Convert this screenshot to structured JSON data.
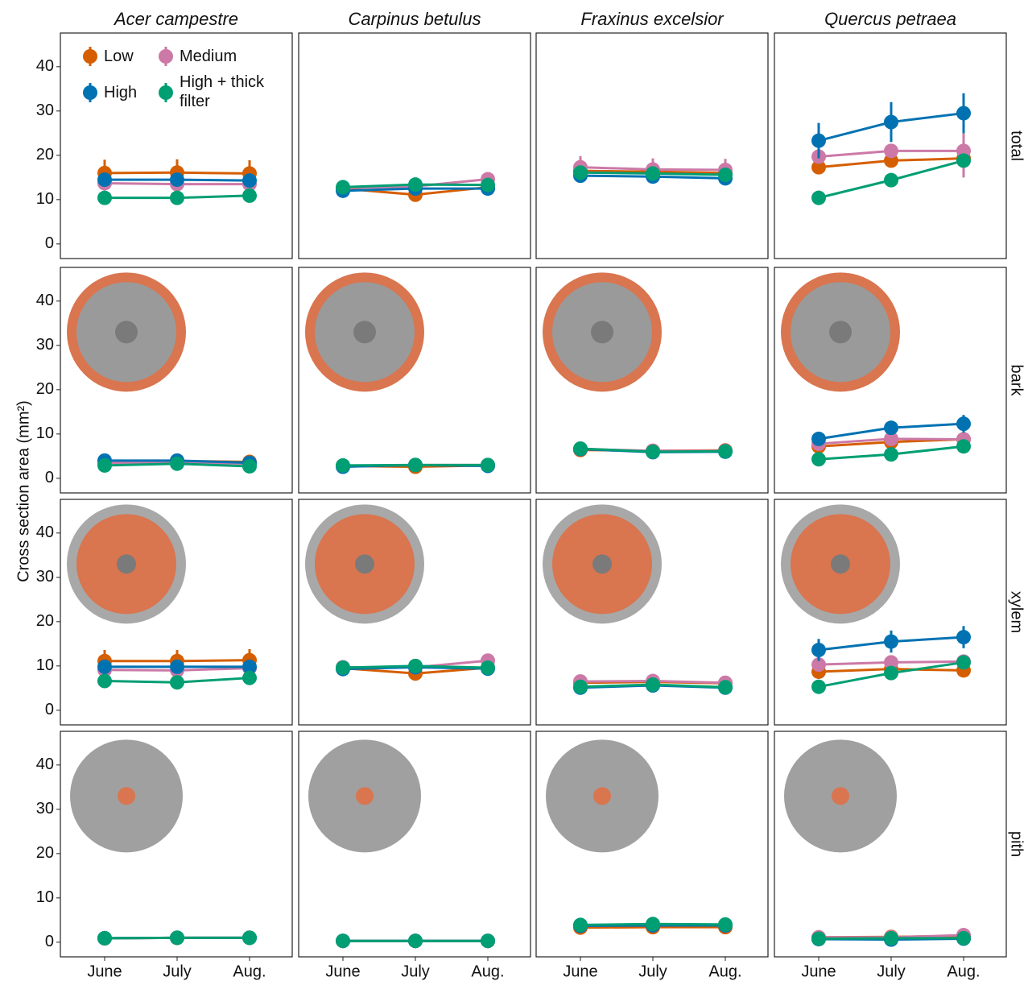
{
  "chart_data": {
    "type": "line",
    "y_label": "Cross section area (mm²)",
    "columns": [
      "Acer campestre",
      "Carpinus betulus",
      "Fraxinus excelsior",
      "Quercus petraea"
    ],
    "rows": [
      "total",
      "bark",
      "xylem",
      "pith"
    ],
    "categories": [
      "June",
      "July",
      "Aug."
    ],
    "ylim": [
      -3.3,
      47.6
    ],
    "yticks": [
      0,
      10,
      20,
      30,
      40
    ],
    "series": [
      {
        "name": "Low",
        "color": "#d55e00",
        "values": [
          [
            16,
            16.1,
            15.9
          ],
          [
            12.5,
            11.1,
            12.8
          ],
          [
            16.5,
            16.3,
            16
          ],
          [
            17.3,
            18.8,
            19.3
          ],
          [
            3.8,
            3.9,
            3.7
          ],
          [
            2.8,
            2.6,
            2.9
          ],
          [
            6.4,
            6.2,
            6.3
          ],
          [
            7.2,
            8.2,
            8.8
          ],
          [
            11.1,
            11.1,
            11.3
          ],
          [
            9.5,
            8.3,
            9.6
          ],
          [
            6.2,
            6.4,
            6.1
          ],
          [
            8.7,
            9.3,
            9
          ],
          [
            0.9,
            1,
            1
          ],
          [
            0.3,
            0.3,
            0.3
          ],
          [
            3.3,
            3.4,
            3.4
          ],
          [
            1.1,
            1.2,
            1.4
          ]
        ],
        "errors": [
          [
            3,
            3,
            3
          ],
          [
            0.8,
            1,
            0.8
          ],
          [
            0.8,
            0.8,
            0.8
          ],
          [
            1.2,
            1.2,
            1.2
          ],
          [
            0.5,
            0.5,
            0.5
          ],
          [
            0.3,
            0.3,
            0.3
          ],
          [
            0.4,
            0.4,
            0.4
          ],
          [
            0.8,
            0.8,
            0.8
          ],
          [
            2.5,
            2.5,
            2.5
          ],
          [
            0.5,
            0.8,
            0.5
          ],
          [
            0.4,
            0.4,
            0.4
          ],
          [
            0.8,
            0.8,
            0.8
          ],
          [
            0.2,
            0.2,
            0.2
          ],
          [
            0.1,
            0.1,
            0.1
          ],
          [
            0.3,
            0.3,
            0.3
          ],
          [
            0.3,
            0.3,
            0.3
          ]
        ]
      },
      {
        "name": "Medium",
        "color": "#cc79a7",
        "values": [
          [
            13.7,
            13.5,
            13.5
          ],
          [
            12.6,
            13,
            14.6
          ],
          [
            17.3,
            16.8,
            16.7
          ],
          [
            19.7,
            21,
            21
          ],
          [
            3.5,
            3.6,
            3.3
          ],
          [
            2.8,
            3,
            3
          ],
          [
            6.6,
            6.2,
            6.2
          ],
          [
            7.8,
            8.9,
            8.8
          ],
          [
            9.1,
            9,
            9.5
          ],
          [
            9.7,
            9.7,
            11.2
          ],
          [
            6.5,
            6.6,
            6.2
          ],
          [
            10.3,
            10.8,
            11
          ],
          [
            0.9,
            1,
            1
          ],
          [
            0.3,
            0.3,
            0.3
          ],
          [
            3.8,
            3.9,
            3.8
          ],
          [
            1.1,
            1.1,
            1.6
          ]
        ],
        "errors": [
          [
            1,
            1,
            1
          ],
          [
            0.6,
            0.6,
            0.8
          ],
          [
            2.5,
            2.5,
            2.5
          ],
          [
            1.5,
            1.5,
            6
          ],
          [
            0.4,
            0.4,
            0.4
          ],
          [
            0.3,
            0.3,
            0.3
          ],
          [
            0.4,
            0.4,
            0.4
          ],
          [
            0.8,
            0.8,
            0.8
          ],
          [
            1,
            1,
            1
          ],
          [
            0.5,
            0.5,
            0.8
          ],
          [
            0.4,
            0.4,
            0.4
          ],
          [
            1,
            1,
            1
          ],
          [
            0.2,
            0.2,
            0.2
          ],
          [
            0.1,
            0.1,
            0.1
          ],
          [
            0.3,
            0.3,
            0.3
          ],
          [
            0.3,
            0.3,
            0.3
          ]
        ]
      },
      {
        "name": "High",
        "color": "#0072b2",
        "values": [
          [
            14.5,
            14.5,
            14.3
          ],
          [
            12,
            12.5,
            12.5
          ],
          [
            15.4,
            15.2,
            14.8
          ],
          [
            23.3,
            27.5,
            29.5
          ],
          [
            4,
            4,
            3.5
          ],
          [
            2.6,
            3,
            2.8
          ],
          [
            6.6,
            5.9,
            6
          ],
          [
            8.9,
            11.4,
            12.3
          ],
          [
            9.8,
            9.8,
            9.8
          ],
          [
            9.3,
            9.7,
            9.4
          ],
          [
            5.1,
            5.6,
            5.1
          ],
          [
            13.6,
            15.5,
            16.5
          ],
          [
            0.9,
            1,
            1
          ],
          [
            0.3,
            0.3,
            0.3
          ],
          [
            3.7,
            3.8,
            3.8
          ],
          [
            0.7,
            0.6,
            0.8
          ]
        ],
        "errors": [
          [
            1,
            1,
            1
          ],
          [
            1,
            1,
            1.5
          ],
          [
            0.8,
            0.8,
            0.8
          ],
          [
            4,
            4.5,
            4.5
          ],
          [
            0.5,
            0.5,
            0.5
          ],
          [
            0.3,
            0.3,
            0.3
          ],
          [
            0.4,
            0.4,
            0.4
          ],
          [
            1,
            1.5,
            2
          ],
          [
            1,
            1,
            1
          ],
          [
            0.5,
            0.5,
            0.5
          ],
          [
            0.4,
            0.4,
            0.4
          ],
          [
            2.5,
            2.5,
            2.5
          ],
          [
            0.2,
            0.2,
            0.2
          ],
          [
            0.1,
            0.1,
            0.1
          ],
          [
            0.3,
            0.3,
            0.3
          ],
          [
            0.3,
            0.3,
            0.3
          ]
        ]
      },
      {
        "name": "High + thick filter",
        "color": "#009e73",
        "values": [
          [
            10.4,
            10.4,
            10.9
          ],
          [
            12.8,
            13.4,
            13.3
          ],
          [
            16.1,
            15.9,
            15.6
          ],
          [
            10.4,
            14.4,
            18.8
          ],
          [
            2.9,
            3.3,
            2.7
          ],
          [
            2.9,
            3,
            3
          ],
          [
            6.7,
            6,
            6.1
          ],
          [
            4.3,
            5.4,
            7.2
          ],
          [
            6.6,
            6.3,
            7.3
          ],
          [
            9.6,
            10,
            9.6
          ],
          [
            5.3,
            5.8,
            5.2
          ],
          [
            5.3,
            8.4,
            10.8
          ],
          [
            0.9,
            1,
            1
          ],
          [
            0.3,
            0.3,
            0.3
          ],
          [
            3.9,
            4.1,
            4
          ],
          [
            0.8,
            0.9,
            0.9
          ]
        ],
        "errors": [
          [
            0.5,
            0.5,
            0.5
          ],
          [
            0.5,
            0.5,
            0.5
          ],
          [
            0.5,
            0.5,
            0.5
          ],
          [
            0.8,
            1,
            1.5
          ],
          [
            0.3,
            0.3,
            0.3
          ],
          [
            0.3,
            0.3,
            0.3
          ],
          [
            0.4,
            0.4,
            0.4
          ],
          [
            0.5,
            0.5,
            0.5
          ],
          [
            0.5,
            0.5,
            0.5
          ],
          [
            0.5,
            0.5,
            0.5
          ],
          [
            0.4,
            0.4,
            0.4
          ],
          [
            0.6,
            0.8,
            0.8
          ],
          [
            0.2,
            0.2,
            0.2
          ],
          [
            0.1,
            0.1,
            0.1
          ],
          [
            0.3,
            0.3,
            0.3
          ],
          [
            0.3,
            0.3,
            0.3
          ]
        ]
      }
    ]
  }
}
